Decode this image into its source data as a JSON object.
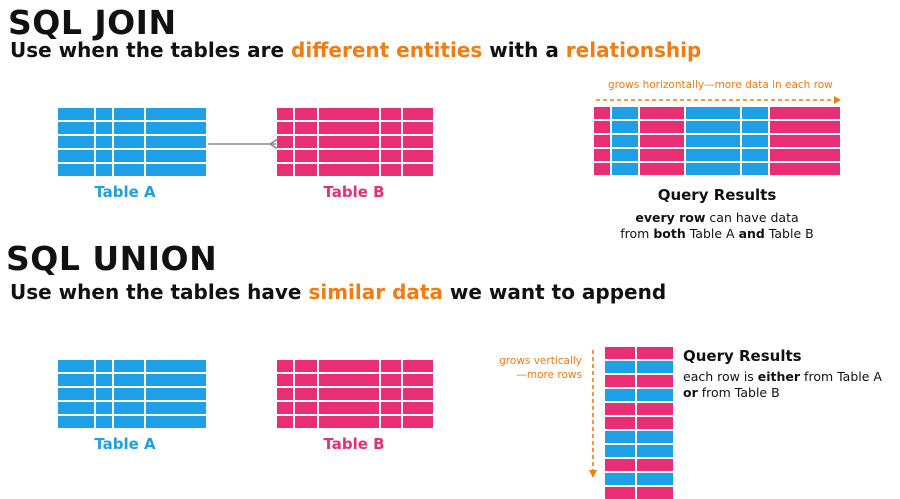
{
  "join": {
    "title": "SQL JOIN",
    "subtitle": {
      "prefix": "Use when the tables are ",
      "hl1": "different entities",
      "mid": " with a ",
      "hl2": "relationship"
    },
    "table_a_label": "Table A",
    "table_b_label": "Table B",
    "arrow_label": "grows horizontally—more data in each row",
    "results_title": "Query Results",
    "results_desc": {
      "l1_bold": "every row",
      "l1_rest": " can have data",
      "l2_pre": "from ",
      "l2_bold1": "both",
      "l2_mid": " Table A ",
      "l2_bold2": "and",
      "l2_end": " Table B"
    }
  },
  "union": {
    "title": "SQL UNION",
    "subtitle": {
      "prefix": "Use when the tables have ",
      "hl1": "similar data",
      "suffix": " we want to append"
    },
    "table_a_label": "Table A",
    "table_b_label": "Table B",
    "arrow_label_1": "grows vertically",
    "arrow_label_2": "—more rows",
    "results_title": "Query Results",
    "results_desc": {
      "l1_pre": "each row is ",
      "l1_bold": "either",
      "l1_rest": " from Table A",
      "l2_bold": "or",
      "l2_rest": " from Table B"
    }
  },
  "colors": {
    "table_a": "#1ea0e6",
    "table_b": "#ea2e76",
    "accent": "#f07c14"
  }
}
